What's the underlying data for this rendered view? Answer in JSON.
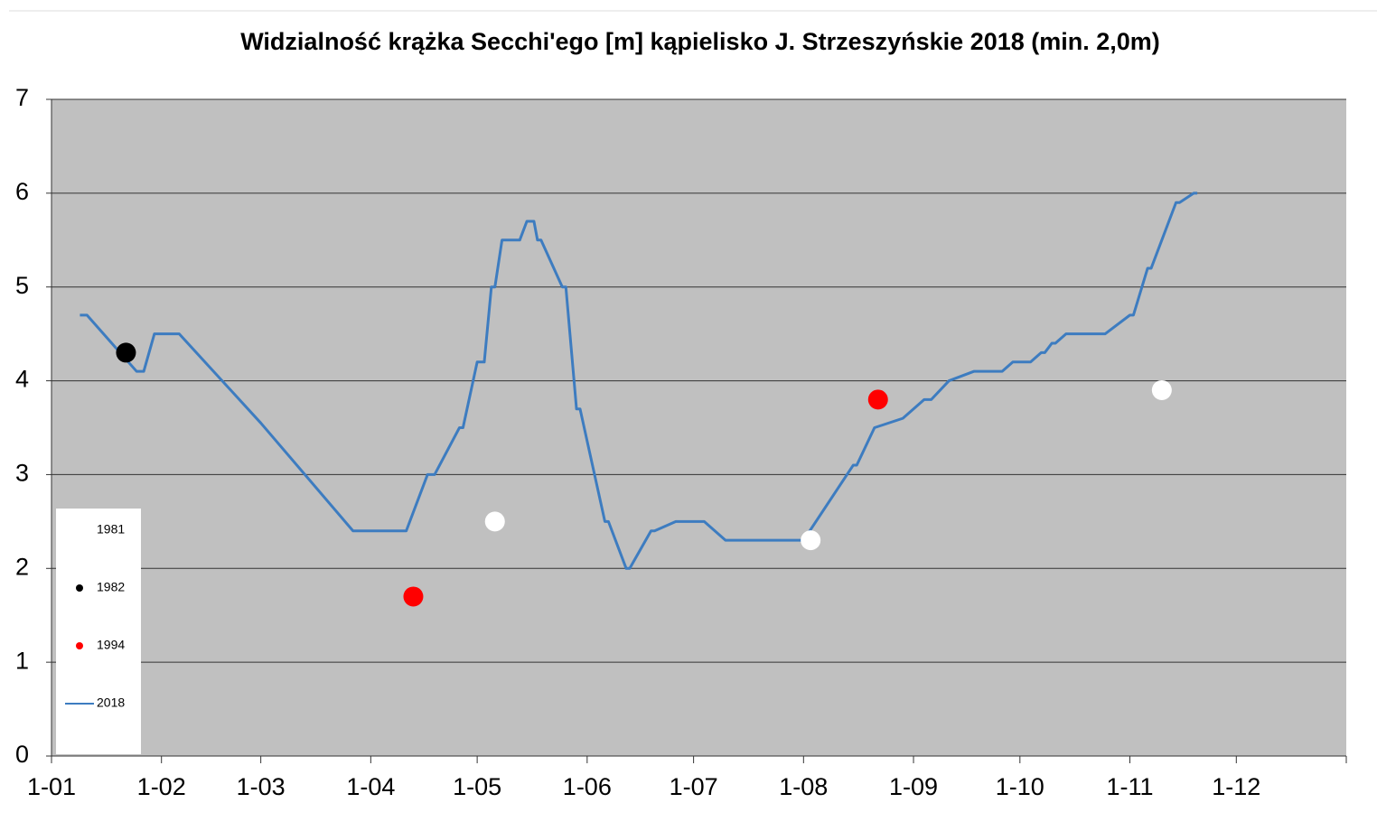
{
  "chart_data": {
    "type": "line",
    "title": "Widzialność krążka Secchi'ego [m] kąpielisko J. Strzeszyńskie 2018 (min. 2,0m)",
    "xlim": [
      0,
      365
    ],
    "xticks": [
      {
        "value": 0,
        "label": "1-01"
      },
      {
        "value": 31,
        "label": "1-02"
      },
      {
        "value": 59,
        "label": "1-03"
      },
      {
        "value": 90,
        "label": "1-04"
      },
      {
        "value": 120,
        "label": "1-05"
      },
      {
        "value": 151,
        "label": "1-06"
      },
      {
        "value": 181,
        "label": "1-07"
      },
      {
        "value": 212,
        "label": "1-08"
      },
      {
        "value": 243,
        "label": "1-09"
      },
      {
        "value": 273,
        "label": "1-10"
      },
      {
        "value": 304,
        "label": "1-11"
      },
      {
        "value": 334,
        "label": "1-12"
      }
    ],
    "ylim": [
      0,
      7
    ],
    "yticks": [
      0,
      1,
      2,
      3,
      4,
      5,
      6,
      7
    ],
    "grid": true,
    "legend": "lower left",
    "background": "#c0c0c0",
    "series": [
      {
        "name": "1981",
        "type": "scatter",
        "color": "#ffffff",
        "x": [
          125,
          214,
          313
        ],
        "values": [
          2.5,
          2.3,
          3.9
        ]
      },
      {
        "name": "1982",
        "type": "scatter",
        "color": "#000000",
        "x": [
          21
        ],
        "values": [
          4.3
        ]
      },
      {
        "name": "1994",
        "type": "scatter",
        "color": "#ff0000",
        "x": [
          102,
          233
        ],
        "values": [
          1.7,
          3.8
        ]
      },
      {
        "name": "2018",
        "type": "line",
        "color": "#3d7cc0",
        "x": [
          8,
          10,
          24,
          26,
          29,
          36,
          59,
          85,
          100,
          106,
          108,
          115,
          116,
          120,
          122,
          124,
          125,
          127,
          132,
          134,
          136,
          137,
          138,
          144,
          145,
          148,
          149,
          156,
          157,
          162,
          163,
          169,
          170,
          176,
          184,
          190,
          212,
          226,
          227,
          232,
          240,
          246,
          248,
          253,
          260,
          268,
          271,
          276,
          279,
          280,
          282,
          283,
          286,
          297,
          304,
          305,
          309,
          310,
          317,
          318,
          322,
          323
        ],
        "values": [
          4.7,
          4.7,
          4.1,
          4.1,
          4.5,
          4.5,
          3.55,
          2.4,
          2.4,
          3.0,
          3.0,
          3.5,
          3.5,
          4.2,
          4.2,
          5.0,
          5.0,
          5.5,
          5.5,
          5.7,
          5.7,
          5.5,
          5.5,
          5.0,
          5.0,
          3.7,
          3.7,
          2.5,
          2.5,
          2.0,
          2.0,
          2.4,
          2.4,
          2.5,
          2.5,
          2.3,
          2.3,
          3.1,
          3.1,
          3.5,
          3.6,
          3.8,
          3.8,
          4.0,
          4.1,
          4.1,
          4.2,
          4.2,
          4.3,
          4.3,
          4.4,
          4.4,
          4.5,
          4.5,
          4.7,
          4.7,
          5.2,
          5.2,
          5.9,
          5.9,
          6.0,
          6.0
        ]
      }
    ]
  }
}
